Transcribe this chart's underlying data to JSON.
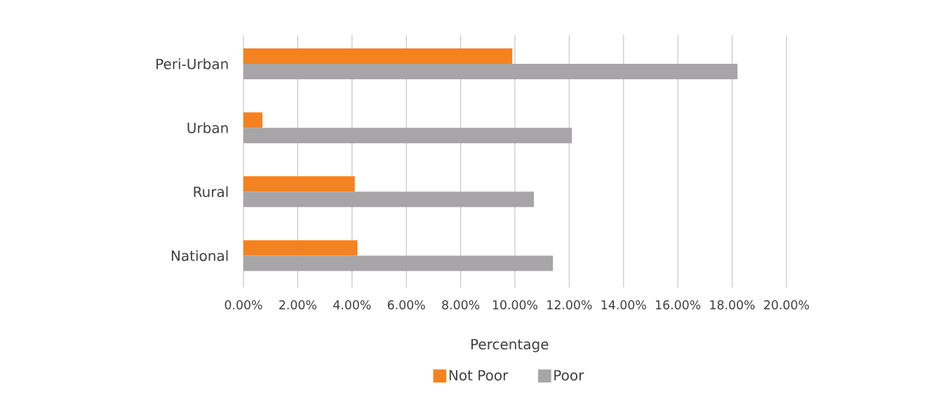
{
  "chart_data": {
    "type": "bar",
    "orientation": "horizontal",
    "categories": [
      "Peri-Urban",
      "Urban",
      "Rural",
      "National"
    ],
    "series": [
      {
        "name": "Not Poor",
        "color": "#f58220",
        "values": [
          9.9,
          0.7,
          4.1,
          4.2
        ]
      },
      {
        "name": "Poor",
        "color": "#a7a5a8",
        "values": [
          18.2,
          12.1,
          10.7,
          11.4
        ]
      }
    ],
    "xlim": [
      0,
      20
    ],
    "xticks": [
      {
        "value": 0,
        "label": "0.00%"
      },
      {
        "value": 2,
        "label": "2.00%"
      },
      {
        "value": 4,
        "label": "4.00%"
      },
      {
        "value": 6,
        "label": "6.00%"
      },
      {
        "value": 8,
        "label": "8.00%"
      },
      {
        "value": 10,
        "label": "10.00%"
      },
      {
        "value": 12,
        "label": "12.00%"
      },
      {
        "value": 14,
        "label": "14.00%"
      },
      {
        "value": 16,
        "label": "16.00%"
      },
      {
        "value": 18,
        "label": "18.00%"
      },
      {
        "value": 20,
        "label": "20.00%"
      }
    ],
    "xlabel": "Percentage",
    "grid": "x",
    "legend": "bottom"
  }
}
